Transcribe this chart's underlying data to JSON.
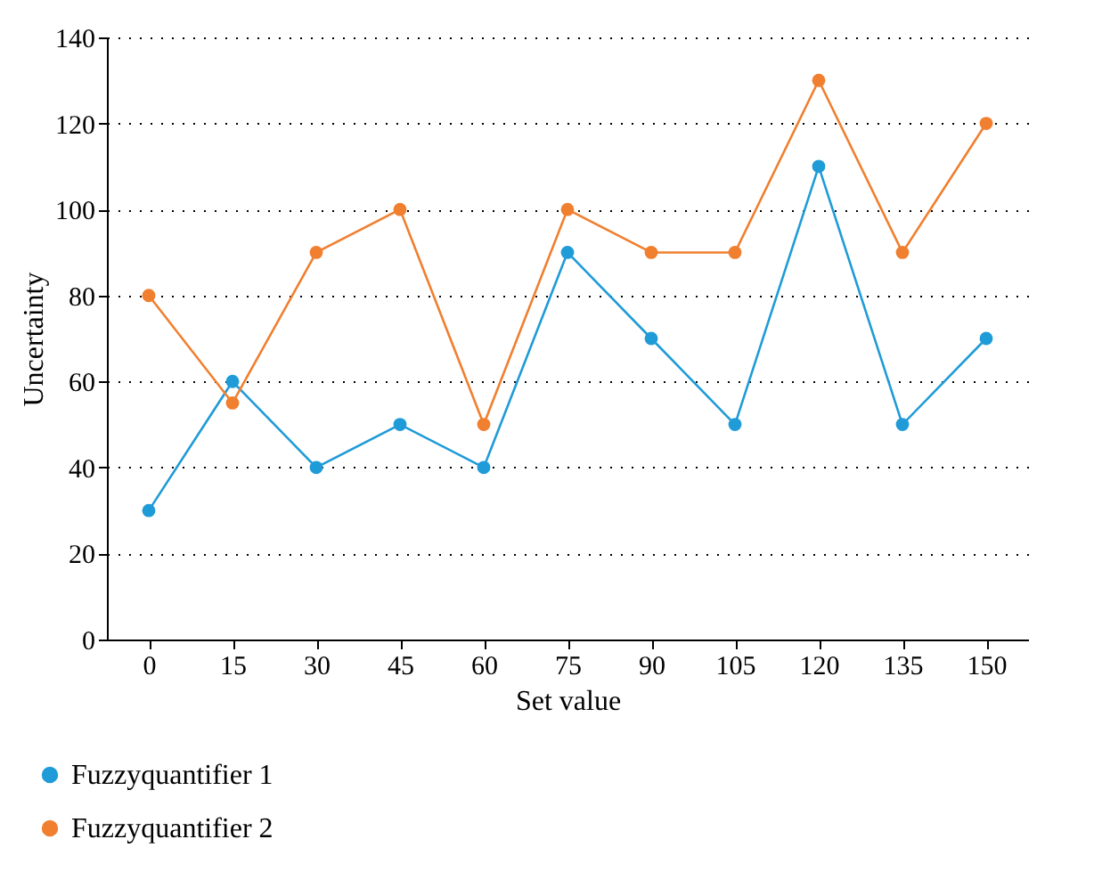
{
  "chart_data": {
    "type": "line",
    "xlabel": "Set value",
    "ylabel": "Uncertainty",
    "categories": [
      "0",
      "15",
      "30",
      "45",
      "60",
      "75",
      "90",
      "105",
      "120",
      "135",
      "150"
    ],
    "series": [
      {
        "name": "Fuzzyquantifier 1",
        "color": "#1f9bd7",
        "values": [
          30,
          60,
          40,
          50,
          40,
          90,
          70,
          50,
          110,
          50,
          70
        ]
      },
      {
        "name": "Fuzzyquantifier 2",
        "color": "#f07f2f",
        "values": [
          80,
          55,
          90,
          100,
          50,
          100,
          90,
          90,
          130,
          90,
          120
        ]
      }
    ],
    "ylim": [
      0,
      140
    ],
    "yticks": [
      0,
      20,
      40,
      60,
      80,
      100,
      120,
      140
    ],
    "grid": "y",
    "legend": "bottom left",
    "marker": "circle",
    "line_style": "solid"
  }
}
